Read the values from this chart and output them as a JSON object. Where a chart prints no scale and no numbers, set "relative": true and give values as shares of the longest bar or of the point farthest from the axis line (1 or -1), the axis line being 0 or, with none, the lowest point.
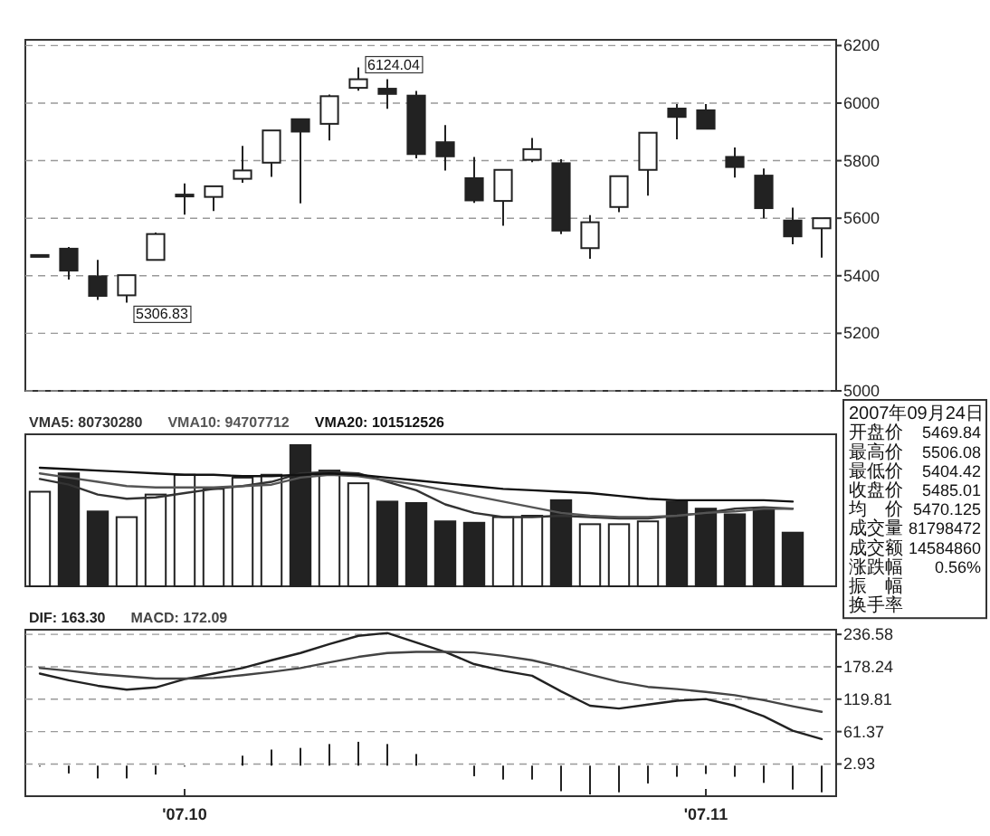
{
  "chart_data": [
    {
      "type": "candlestick",
      "categories": [
        null,
        null,
        null,
        null,
        null,
        null,
        null,
        null,
        null,
        null,
        null,
        null,
        null,
        null,
        null,
        null,
        null,
        null,
        null,
        null,
        null,
        null,
        null,
        null,
        null,
        null,
        null,
        null
      ],
      "ohlc": [
        [
          5466,
          5472,
          5466,
          5472
        ],
        [
          5494,
          5500,
          5387,
          5418
        ],
        [
          5398,
          5455,
          5316,
          5330
        ],
        [
          5332,
          5402,
          5306.83,
          5402
        ],
        [
          5455,
          5550,
          5455,
          5545
        ],
        [
          5678,
          5721,
          5612,
          5682
        ],
        [
          5674,
          5711,
          5625,
          5711
        ],
        [
          5737,
          5851,
          5723,
          5766
        ],
        [
          5793,
          5905,
          5744,
          5905
        ],
        [
          5944,
          5944,
          5652,
          5901
        ],
        [
          5928,
          6030,
          5870,
          6024
        ],
        [
          6053,
          6124.04,
          6043,
          6083
        ],
        [
          6050,
          6083,
          5980,
          6032
        ],
        [
          6026,
          6042,
          5808,
          5823
        ],
        [
          5864,
          5924,
          5766,
          5815
        ],
        [
          5739,
          5813,
          5653,
          5662
        ],
        [
          5660,
          5768,
          5574,
          5768
        ],
        [
          5803,
          5879,
          5795,
          5840
        ],
        [
          5791,
          5805,
          5545,
          5557
        ],
        [
          5496,
          5611,
          5459,
          5586
        ],
        [
          5639,
          5746,
          5621,
          5746
        ],
        [
          5768,
          5897,
          5678,
          5897
        ],
        [
          5981,
          5997,
          5874,
          5952
        ],
        [
          5975,
          5997,
          5911,
          5911
        ],
        [
          5813,
          5846,
          5741,
          5778
        ],
        [
          5748,
          5773,
          5600,
          5635
        ],
        [
          5592,
          5637,
          5509,
          5537
        ],
        [
          5565,
          5600,
          5463,
          5600
        ]
      ],
      "ylim": [
        5000,
        6220
      ],
      "yticks": [
        5000,
        5200,
        5400,
        5600,
        5800,
        6000,
        6200
      ],
      "grid": "y",
      "tick_labels": "y",
      "annotations": [
        "6124.04",
        "5306.83"
      ]
    },
    {
      "type": "bar",
      "relative": true,
      "legend": "top left",
      "categories": [
        null,
        null,
        null,
        null,
        null,
        null,
        null,
        null,
        null,
        null,
        null,
        null,
        null,
        null,
        null,
        null,
        null,
        null,
        null,
        null,
        null,
        null,
        null,
        null,
        null,
        null,
        null,
        null
      ],
      "series": [
        {
          "type": "bar",
          "values": [
            0.67,
            0.8,
            0.53,
            0.49,
            0.65,
            0.79,
            0.69,
            0.77,
            0.79,
            1,
            0.82,
            0.73,
            0.6,
            0.59,
            0.46,
            0.45,
            0.49,
            0.5,
            0.61,
            0.44,
            0.44,
            0.46,
            0.6,
            0.55,
            0.51,
            0.55,
            0.38,
            null
          ],
          "colors": [
            "#ffffff",
            "#222222",
            "#222222",
            "#ffffff",
            "#ffffff",
            "#ffffff",
            "#ffffff",
            "#ffffff",
            "#ffffff",
            "#222222",
            "#ffffff",
            "#ffffff",
            "#222222",
            "#222222",
            "#222222",
            "#222222",
            "#ffffff",
            "#ffffff",
            "#222222",
            "#ffffff",
            "#ffffff",
            "#ffffff",
            "#222222",
            "#222222",
            "#222222",
            "#222222",
            "#222222",
            null
          ]
        },
        {
          "type": "line",
          "name": "VMA5: 80730280",
          "color": "#333333",
          "values": [
            0.76,
            0.72,
            0.65,
            0.62,
            0.63,
            0.66,
            0.69,
            0.71,
            0.74,
            0.8,
            0.81,
            0.8,
            0.74,
            0.68,
            0.58,
            0.52,
            0.49,
            0.49,
            0.5,
            0.49,
            0.48,
            0.48,
            0.5,
            0.52,
            0.55,
            0.56,
            0.55,
            null
          ]
        },
        {
          "type": "line",
          "name": "VMA10: 94707712",
          "color": "#555555",
          "values": [
            0.8,
            0.77,
            0.74,
            0.71,
            0.7,
            0.7,
            0.7,
            0.71,
            0.72,
            0.77,
            0.79,
            0.78,
            0.75,
            0.72,
            0.68,
            0.64,
            0.6,
            0.56,
            0.52,
            0.5,
            0.49,
            0.49,
            0.5,
            0.52,
            0.53,
            0.55,
            0.55,
            null
          ]
        },
        {
          "type": "line",
          "name": "VMA20: 101512526",
          "color": "#111111",
          "values": [
            0.84,
            0.83,
            0.82,
            0.81,
            0.8,
            0.79,
            0.79,
            0.78,
            0.78,
            0.79,
            0.8,
            0.79,
            0.77,
            0.75,
            0.73,
            0.71,
            0.69,
            0.68,
            0.67,
            0.66,
            0.64,
            0.62,
            0.61,
            0.61,
            0.61,
            0.61,
            0.6,
            null
          ]
        }
      ]
    },
    {
      "type": "line",
      "legend": "top left",
      "grid": "y",
      "ylim": [
        -55,
        245
      ],
      "yticks": [
        2.93,
        61.37,
        119.81,
        178.24,
        236.58
      ],
      "categories": [
        null,
        null,
        null,
        null,
        null,
        "'07.10",
        null,
        null,
        null,
        null,
        null,
        null,
        null,
        null,
        null,
        null,
        null,
        null,
        null,
        null,
        null,
        null,
        null,
        "'07.11",
        null,
        null,
        null,
        null
      ],
      "series": [
        {
          "type": "line",
          "name": "DIF: 163.30",
          "color": "#222222",
          "values": [
            166,
            154,
            144,
            137,
            141,
            156,
            166,
            176,
            190,
            203,
            219,
            234,
            239,
            222,
            205,
            183,
            171,
            162,
            134,
            108,
            103,
            110,
            117,
            120,
            108,
            89,
            63,
            48
          ]
        },
        {
          "type": "line",
          "name": "MACD: 172.09",
          "color": "#444444",
          "values": [
            176,
            171,
            165,
            161,
            157,
            157,
            158,
            163,
            169,
            176,
            186,
            196,
            203,
            205,
            205,
            204,
            198,
            190,
            178,
            164,
            151,
            142,
            138,
            133,
            127,
            118,
            107,
            97
          ]
        },
        {
          "type": "bar",
          "color": "#222222",
          "values": [
            0,
            -14,
            -23,
            -23,
            -16,
            0,
            null,
            18,
            29,
            32,
            39,
            43,
            39,
            21,
            null,
            -19,
            -25,
            -25,
            -46,
            -52,
            -48,
            -32,
            -20,
            -15,
            -20,
            -31,
            -43,
            -48
          ]
        }
      ]
    },
    {
      "type": "other",
      "title": "2007年09月24日",
      "categories": [
        "开盘价",
        "最高价",
        "最低价",
        "收盘价",
        "均　价",
        "成交量",
        "成交额",
        "涨跌幅",
        "振　幅",
        "换手率"
      ],
      "value_labels": [
        "5469.84",
        "5506.08",
        "5404.42",
        "5485.01",
        "5470.125",
        "81798472",
        "14584860",
        "0.56%",
        null,
        null
      ]
    }
  ]
}
